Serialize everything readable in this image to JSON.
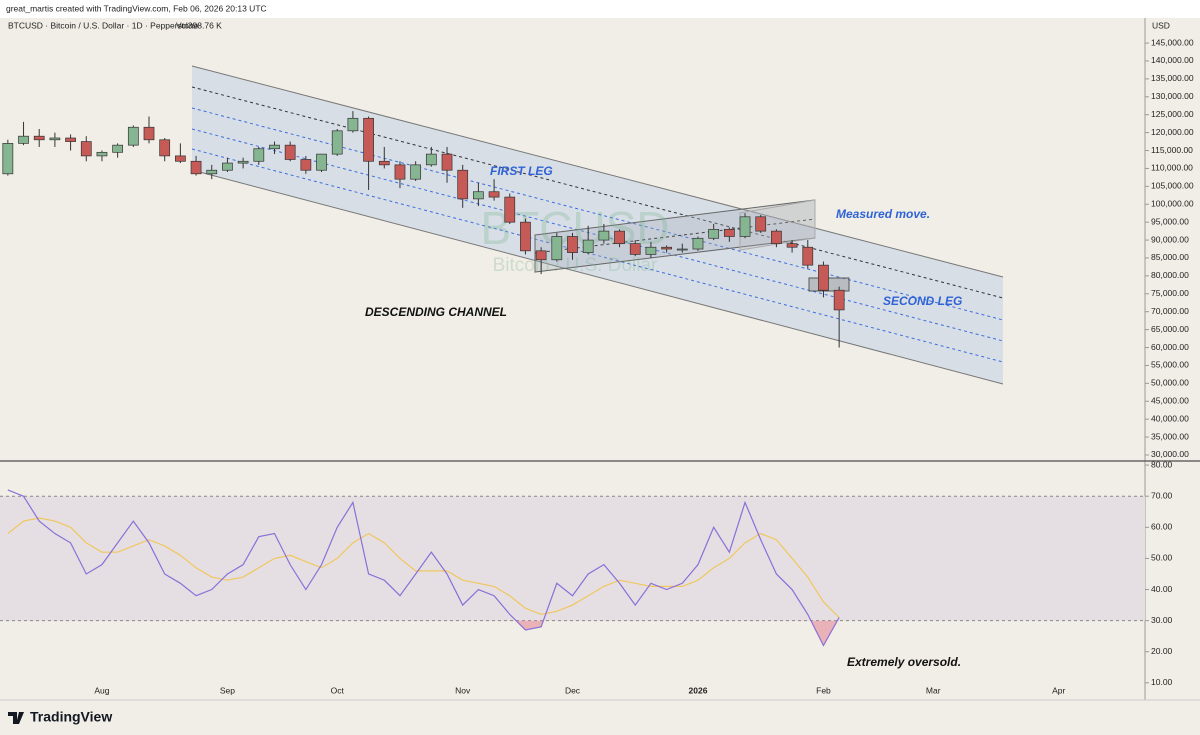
{
  "header": {
    "credit": "great_martis created with TradingView.com, Feb 06, 2026 20:13 UTC",
    "symbol": "BTCUSD · Bitcoin / U.S. Dollar · 1D · Pepperstone",
    "volume": "Vol398.76 K",
    "currency": "USD",
    "brand": "TradingView"
  },
  "chart_data": [
    {
      "type": "candlestick",
      "watermark": {
        "symbol": "BTCUSD",
        "description": "Bitcoin / U.S. Dollar"
      },
      "annotations": [
        "FIRST LEG",
        "Measured move.",
        "SECOND LEG",
        "DESCENDING CHANNEL"
      ],
      "up_color": "#86b592",
      "down_color": "#c65a57",
      "categories": [
        null,
        null,
        null,
        null,
        null,
        null,
        "Aug",
        null,
        null,
        null,
        null,
        null,
        null,
        null,
        "Sep",
        null,
        null,
        null,
        null,
        null,
        null,
        "Oct",
        null,
        null,
        null,
        null,
        null,
        null,
        null,
        "Nov",
        null,
        null,
        null,
        null,
        null,
        null,
        "Dec",
        null,
        null,
        null,
        null,
        null,
        null,
        null,
        "2026",
        null,
        null,
        null,
        null,
        null,
        null,
        null,
        "Feb",
        null,
        null,
        null,
        null,
        null,
        null,
        "Mar",
        null,
        null,
        null,
        null,
        null,
        null,
        null,
        "Apr",
        null,
        null,
        null,
        null,
        null
      ],
      "open": [
        108500,
        117000,
        119000,
        118000,
        118500,
        117500,
        113500,
        114500,
        116500,
        121500,
        118000,
        113500,
        112000,
        108500,
        109500,
        111500,
        112000,
        115500,
        116500,
        112500,
        109500,
        114000,
        120500,
        124000,
        112000,
        111000,
        107000,
        111000,
        114000,
        109500,
        101500,
        103500,
        102000,
        95000,
        87000,
        84500,
        91000,
        86500,
        90000,
        92500,
        89000,
        86000,
        88000,
        87500,
        87500,
        90500,
        93000,
        91000,
        96500,
        92500,
        89000,
        88000,
        83000,
        76000,
        null,
        null,
        null,
        null,
        null,
        null,
        null,
        null,
        null,
        null,
        null,
        null,
        null,
        null,
        null,
        null,
        null,
        null,
        null
      ],
      "high": [
        118000,
        123000,
        121000,
        120000,
        119500,
        119000,
        115000,
        117000,
        122000,
        124500,
        118500,
        117000,
        113500,
        111000,
        113000,
        113000,
        116000,
        117500,
        117500,
        113500,
        114000,
        121000,
        126000,
        124500,
        116000,
        112000,
        112000,
        116000,
        116000,
        111000,
        106000,
        107000,
        103000,
        96000,
        88000,
        92000,
        92000,
        94000,
        94500,
        93000,
        90000,
        89500,
        88500,
        89000,
        91000,
        94500,
        93500,
        97500,
        97000,
        93000,
        90000,
        90000,
        84000,
        77000,
        null,
        null,
        null,
        null,
        null,
        null,
        null,
        null,
        null,
        null,
        null,
        null,
        null,
        null,
        null,
        null,
        null,
        null,
        null
      ],
      "low": [
        108000,
        116500,
        116000,
        116000,
        115000,
        112000,
        112000,
        113000,
        116000,
        117000,
        112000,
        111500,
        108000,
        107000,
        109000,
        110000,
        111000,
        114000,
        112000,
        108500,
        109000,
        113500,
        120000,
        104000,
        110000,
        104500,
        106500,
        110500,
        106000,
        99000,
        99500,
        101000,
        94500,
        86000,
        80500,
        84000,
        84500,
        86000,
        89000,
        88000,
        85500,
        85000,
        86500,
        86500,
        87000,
        90000,
        89500,
        90500,
        92000,
        88000,
        86500,
        82000,
        74000,
        60000,
        null,
        null,
        null,
        null,
        null,
        null,
        null,
        null,
        null,
        null,
        null,
        null,
        null,
        null,
        null,
        null,
        null,
        null,
        null
      ],
      "close": [
        117000,
        119000,
        118000,
        118500,
        117500,
        113500,
        114500,
        116500,
        121500,
        118000,
        113500,
        112000,
        108500,
        109500,
        111500,
        112000,
        115500,
        116500,
        112500,
        109500,
        114000,
        120500,
        124000,
        112000,
        111000,
        107000,
        111000,
        114000,
        109500,
        101500,
        103500,
        102000,
        95000,
        87000,
        84500,
        91000,
        86500,
        90000,
        92500,
        89000,
        86000,
        88000,
        87500,
        87500,
        90500,
        93000,
        91000,
        96500,
        92500,
        89000,
        88000,
        83000,
        76000,
        70500,
        null,
        null,
        null,
        null,
        null,
        null,
        null,
        null,
        null,
        null,
        null,
        null,
        null,
        null,
        null,
        null,
        null,
        null,
        null
      ],
      "ylim": [
        28600,
        152000
      ],
      "yticks": [
        {
          "value": 145000,
          "label": "145,000.00"
        },
        {
          "value": 140000,
          "label": "140,000.00"
        },
        {
          "value": 135000,
          "label": "135,000.00"
        },
        {
          "value": 130000,
          "label": "130,000.00"
        },
        {
          "value": 125000,
          "label": "125,000.00"
        },
        {
          "value": 120000,
          "label": "120,000.00"
        },
        {
          "value": 115000,
          "label": "115,000.00"
        },
        {
          "value": 110000,
          "label": "110,000.00"
        },
        {
          "value": 105000,
          "label": "105,000.00"
        },
        {
          "value": 100000,
          "label": "100,000.00"
        },
        {
          "value": 95000,
          "label": "95,000.00"
        },
        {
          "value": 90000,
          "label": "90,000.00"
        },
        {
          "value": 85000,
          "label": "85,000.00"
        },
        {
          "value": 80000,
          "label": "80,000.00"
        },
        {
          "value": 75000,
          "label": "75,000.00"
        },
        {
          "value": 70000,
          "label": "70,000.00"
        },
        {
          "value": 65000,
          "label": "65,000.00"
        },
        {
          "value": 60000,
          "label": "60,000.00"
        },
        {
          "value": 55000,
          "label": "55,000.00"
        },
        {
          "value": 50000,
          "label": "50,000.00"
        },
        {
          "value": 45000,
          "label": "45,000.00"
        },
        {
          "value": 40000,
          "label": "40,000.00"
        },
        {
          "value": 35000,
          "label": "35,000.00"
        },
        {
          "value": 30000,
          "label": "30,000.00"
        }
      ]
    },
    {
      "type": "line",
      "annotation": "Extremely oversold.",
      "band": [
        30,
        70
      ],
      "band_color": "#e5dfe3",
      "oversold_color": "#e58a9a",
      "series": [
        {
          "color": "#8a6fd8",
          "values": [
            72,
            70,
            62,
            58,
            55,
            45,
            48,
            55,
            62,
            55,
            45,
            42,
            38,
            40,
            45,
            48,
            57,
            58,
            48,
            40,
            48,
            60,
            68,
            45,
            43,
            38,
            45,
            52,
            45,
            35,
            40,
            38,
            32,
            27,
            28,
            42,
            38,
            45,
            48,
            42,
            35,
            42,
            40,
            42,
            48,
            60,
            52,
            68,
            56,
            45,
            40,
            32,
            22,
            31,
            null,
            null,
            null,
            null,
            null,
            null,
            null,
            null,
            null,
            null,
            null,
            null,
            null,
            null,
            null,
            null,
            null,
            null,
            null
          ]
        },
        {
          "color": "#f0c75e",
          "values": [
            58,
            62,
            63,
            62,
            60,
            55,
            52,
            52,
            54,
            56,
            54,
            51,
            47,
            44,
            43,
            44,
            47,
            50,
            51,
            49,
            47,
            50,
            55,
            58,
            55,
            50,
            46,
            46,
            46,
            43,
            42,
            41,
            38,
            34,
            32,
            33,
            35,
            38,
            41,
            43,
            42,
            41,
            41,
            41,
            43,
            47,
            50,
            55,
            58,
            56,
            50,
            44,
            36,
            31,
            null,
            null,
            null,
            null,
            null,
            null,
            null,
            null,
            null,
            null,
            null,
            null,
            null,
            null,
            null,
            null,
            null,
            null,
            null
          ]
        }
      ],
      "ylim": [
        9.3,
        81
      ],
      "yticks": [
        {
          "value": 80,
          "label": "80.00"
        },
        {
          "value": 70,
          "label": "70.00"
        },
        {
          "value": 60,
          "label": "60.00"
        },
        {
          "value": 50,
          "label": "50.00"
        },
        {
          "value": 40,
          "label": "40.00"
        },
        {
          "value": 30,
          "label": "30.00"
        },
        {
          "value": 20,
          "label": "20.00"
        },
        {
          "value": 10,
          "label": "10.00"
        }
      ]
    }
  ]
}
